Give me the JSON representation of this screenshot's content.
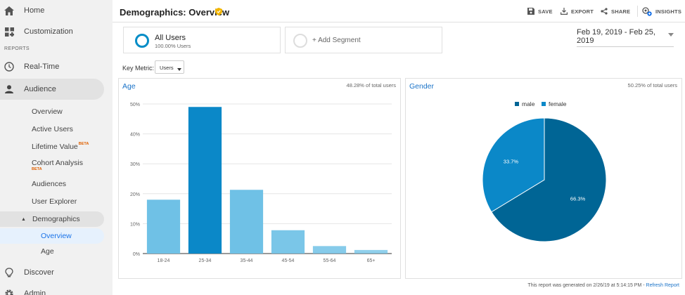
{
  "sidebar": {
    "home": "Home",
    "customization": "Customization",
    "section_reports": "REPORTS",
    "realtime": "Real-Time",
    "audience": "Audience",
    "audience_items": {
      "overview": "Overview",
      "active_users": "Active Users",
      "lifetime_value": "Lifetime Value",
      "lifetime_badge": "BETA",
      "cohort": "Cohort Analysis",
      "cohort_badge": "BETA",
      "audiences": "Audiences",
      "user_explorer": "User Explorer",
      "demographics": "Demographics",
      "demo_overview": "Overview",
      "demo_age": "Age"
    },
    "discover": "Discover",
    "admin": "Admin"
  },
  "header": {
    "title": "Demographics: Overview",
    "save": "SAVE",
    "export": "EXPORT",
    "share": "SHARE",
    "insights": "INSIGHTS"
  },
  "segments": {
    "active_name": "All Users",
    "active_pct": "100.00% Users",
    "add_label": "+ Add Segment"
  },
  "date_range": "Feb 19, 2019 - Feb 25, 2019",
  "key_metric": {
    "label": "Key Metric:",
    "value": "Users"
  },
  "age_panel": {
    "title": "Age",
    "pct_total": "48.28% of total users"
  },
  "gender_panel": {
    "title": "Gender",
    "pct_total": "50.25% of total users"
  },
  "footer": {
    "generated": "This report was generated on 2/26/19 at 5:14:15 PM - ",
    "refresh": "Refresh Report"
  },
  "colors": {
    "bar_dark": "#0b88c8",
    "bar_light": "#6fc1e6",
    "male": "#006595",
    "female": "#0b88c8",
    "accent": "#1a73e8"
  },
  "chart_data": [
    {
      "type": "bar",
      "title": "Age",
      "categories": [
        "18-24",
        "25-34",
        "35-44",
        "45-54",
        "55-64",
        "65+"
      ],
      "values": [
        18.0,
        49.0,
        21.3,
        7.8,
        2.5,
        1.2
      ],
      "ylim": [
        0,
        50
      ],
      "yticks": [
        "0%",
        "10%",
        "20%",
        "30%",
        "40%",
        "50%"
      ],
      "grid": true
    },
    {
      "type": "pie",
      "title": "Gender",
      "legend": [
        "male",
        "female"
      ],
      "legend_position": "top",
      "values": [
        66.3,
        33.7
      ],
      "labels": [
        "66.3%",
        "33.7%"
      ]
    }
  ]
}
